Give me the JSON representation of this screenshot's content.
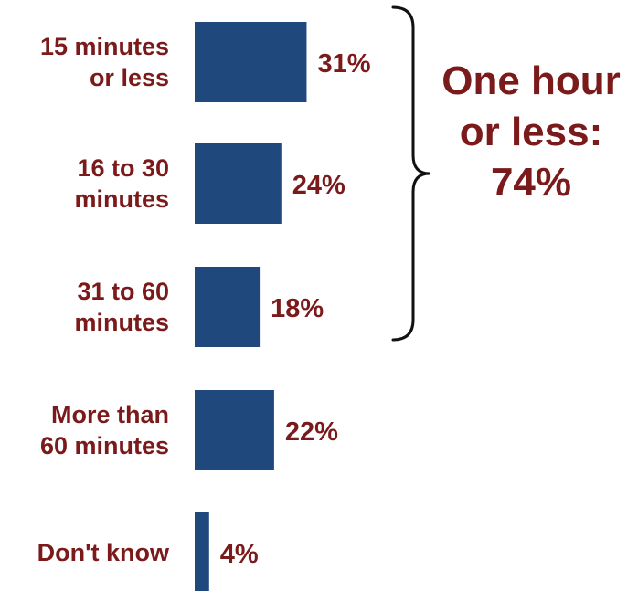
{
  "chart_data": {
    "type": "bar",
    "orientation": "horizontal",
    "categories": [
      "15 minutes or less",
      "16 to 30 minutes",
      "31 to 60 minutes",
      "More than 60 minutes",
      "Don't know"
    ],
    "category_lines": [
      [
        "15 minutes",
        "or less"
      ],
      [
        "16 to 30",
        "minutes"
      ],
      [
        "31 to 60",
        "minutes"
      ],
      [
        "More than",
        "60 minutes"
      ],
      [
        "Don't know"
      ]
    ],
    "values": [
      31,
      24,
      18,
      22,
      4
    ],
    "value_labels": [
      "31%",
      "24%",
      "18%",
      "22%",
      "4%"
    ],
    "unit": "%",
    "grid": false,
    "legend": false,
    "annotation": {
      "lines": [
        "One hour",
        "or less:",
        "74%"
      ],
      "value": 74,
      "brackets_categories": [
        "15 minutes or less",
        "16 to 30 minutes",
        "31 to 60 minutes"
      ]
    },
    "colors": {
      "bar": "#1F497D",
      "text": "#7B1A1A"
    }
  }
}
